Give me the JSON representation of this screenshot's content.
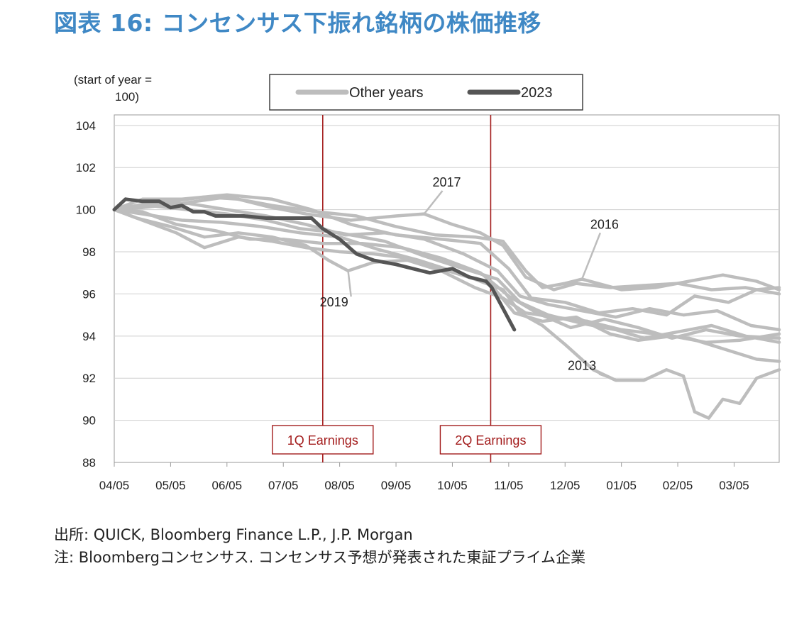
{
  "title": "図表 16: コンセンサス下振れ銘柄の株価推移",
  "source": "出所: QUICK, Bloomberg Finance L.P., J.P. Morgan",
  "footnote": "注: Bloombergコンセンサス. コンセンサス予想が発表された東証プライム企業",
  "colors": {
    "other": "#bdbdbd",
    "highlight": "#555555",
    "event": "#a31c1c",
    "title": "#3f88c5"
  },
  "chart_data": {
    "type": "line",
    "ylabel": "(start of year = 100)",
    "ylabel_lines": [
      "(start of year =",
      "100)"
    ],
    "ylim": [
      88,
      104.5
    ],
    "yticks": [
      88,
      90,
      92,
      94,
      96,
      98,
      100,
      102,
      104
    ],
    "x_domain": [
      0,
      11.8
    ],
    "xticks": [
      "04/05",
      "05/05",
      "06/05",
      "07/05",
      "08/05",
      "09/05",
      "10/05",
      "11/05",
      "12/05",
      "01/05",
      "02/05",
      "03/05"
    ],
    "grid": "horizontal",
    "legend": {
      "placement": "top-center",
      "entries": [
        {
          "name": "Other years",
          "color": "#bdbdbd"
        },
        {
          "name": "2023",
          "color": "#555555"
        }
      ]
    },
    "events": [
      {
        "label": "1Q Earnings",
        "x": 3.7
      },
      {
        "label": "2Q Earnings",
        "x": 6.68
      }
    ],
    "annotations": [
      {
        "text": "2017",
        "x": 5.9,
        "y": 101.1,
        "point": [
          5.5,
          99.8
        ]
      },
      {
        "text": "2016",
        "x": 8.7,
        "y": 99.1,
        "point": [
          8.3,
          96.7
        ]
      },
      {
        "text": "2019",
        "x": 3.9,
        "y": 95.4,
        "point": [
          4.15,
          97.1
        ]
      },
      {
        "text": "2013",
        "x": 8.3,
        "y": 92.4,
        "point": [
          8.9,
          91.9
        ]
      }
    ],
    "series": [
      {
        "name": "2023",
        "highlight": true,
        "points": [
          [
            0,
            100
          ],
          [
            0.2,
            100.5
          ],
          [
            0.5,
            100.4
          ],
          [
            0.8,
            100.4
          ],
          [
            1.0,
            100.1
          ],
          [
            1.2,
            100.2
          ],
          [
            1.4,
            99.9
          ],
          [
            1.6,
            99.9
          ],
          [
            1.8,
            99.7
          ],
          [
            2.0,
            99.7
          ],
          [
            2.3,
            99.7
          ],
          [
            2.7,
            99.6
          ],
          [
            3.2,
            99.6
          ],
          [
            3.5,
            99.6
          ],
          [
            3.7,
            99.1
          ],
          [
            4.0,
            98.6
          ],
          [
            4.3,
            97.9
          ],
          [
            4.6,
            97.6
          ],
          [
            5.0,
            97.4
          ],
          [
            5.3,
            97.2
          ],
          [
            5.6,
            97.0
          ],
          [
            6.0,
            97.2
          ],
          [
            6.3,
            96.8
          ],
          [
            6.6,
            96.6
          ],
          [
            6.7,
            96.3
          ],
          [
            6.9,
            95.3
          ],
          [
            7.1,
            94.3
          ]
        ]
      },
      {
        "name": "2017",
        "points": [
          [
            0,
            100
          ],
          [
            0.5,
            100.2
          ],
          [
            1.0,
            100.4
          ],
          [
            1.6,
            100.6
          ],
          [
            2.2,
            100.5
          ],
          [
            2.8,
            100.1
          ],
          [
            3.4,
            99.8
          ],
          [
            4.2,
            99.5
          ],
          [
            5.0,
            99.7
          ],
          [
            5.5,
            99.8
          ],
          [
            6.0,
            99.3
          ],
          [
            6.5,
            98.9
          ],
          [
            6.9,
            98.3
          ],
          [
            7.3,
            96.8
          ],
          [
            7.8,
            96.2
          ],
          [
            8.2,
            96.5
          ],
          [
            8.8,
            96.3
          ],
          [
            9.4,
            96.4
          ],
          [
            10.0,
            96.5
          ],
          [
            10.6,
            96.2
          ],
          [
            11.2,
            96.3
          ],
          [
            11.8,
            96.0
          ]
        ]
      },
      {
        "name": "2016",
        "points": [
          [
            0,
            100
          ],
          [
            0.5,
            100.1
          ],
          [
            1.2,
            100.3
          ],
          [
            2.0,
            100.6
          ],
          [
            2.8,
            100.2
          ],
          [
            3.6,
            99.9
          ],
          [
            4.3,
            99.7
          ],
          [
            5.0,
            99.2
          ],
          [
            5.7,
            98.8
          ],
          [
            6.4,
            98.7
          ],
          [
            6.9,
            98.5
          ],
          [
            7.3,
            97.1
          ],
          [
            7.6,
            96.3
          ],
          [
            8.0,
            96.5
          ],
          [
            8.3,
            96.7
          ],
          [
            9.0,
            96.2
          ],
          [
            9.6,
            96.3
          ],
          [
            10.2,
            96.6
          ],
          [
            10.8,
            96.9
          ],
          [
            11.4,
            96.6
          ],
          [
            11.8,
            96.2
          ]
        ]
      },
      {
        "name": "2019",
        "points": [
          [
            0,
            100
          ],
          [
            0.4,
            99.6
          ],
          [
            1.0,
            99.2
          ],
          [
            1.6,
            98.7
          ],
          [
            2.2,
            98.9
          ],
          [
            2.8,
            98.7
          ],
          [
            3.4,
            98.3
          ],
          [
            3.8,
            97.6
          ],
          [
            4.15,
            97.1
          ],
          [
            4.6,
            97.5
          ],
          [
            5.2,
            97.6
          ],
          [
            5.8,
            97.1
          ],
          [
            6.4,
            96.3
          ],
          [
            6.9,
            95.8
          ],
          [
            7.3,
            95.1
          ],
          [
            7.8,
            94.9
          ],
          [
            8.4,
            94.7
          ],
          [
            9.0,
            94.3
          ],
          [
            9.6,
            94.1
          ],
          [
            10.2,
            93.9
          ],
          [
            10.8,
            93.4
          ],
          [
            11.4,
            92.9
          ],
          [
            11.8,
            92.8
          ]
        ]
      },
      {
        "name": "2013",
        "points": [
          [
            0,
            100
          ],
          [
            0.5,
            99.5
          ],
          [
            1.1,
            98.9
          ],
          [
            1.6,
            98.2
          ],
          [
            2.2,
            98.7
          ],
          [
            2.8,
            98.5
          ],
          [
            3.4,
            98.2
          ],
          [
            4.0,
            98.0
          ],
          [
            4.6,
            97.9
          ],
          [
            5.2,
            97.7
          ],
          [
            5.8,
            97.2
          ],
          [
            6.4,
            96.7
          ],
          [
            6.9,
            96.2
          ],
          [
            7.2,
            95.1
          ],
          [
            7.6,
            94.5
          ],
          [
            8.0,
            93.6
          ],
          [
            8.5,
            92.4
          ],
          [
            8.9,
            91.9
          ],
          [
            9.4,
            91.9
          ],
          [
            9.8,
            92.4
          ],
          [
            10.1,
            92.1
          ],
          [
            10.3,
            90.4
          ],
          [
            10.55,
            90.1
          ],
          [
            10.8,
            91.0
          ],
          [
            11.1,
            90.8
          ],
          [
            11.4,
            92.0
          ],
          [
            11.8,
            92.4
          ]
        ]
      },
      {
        "name": "Other years",
        "points": [
          [
            0,
            100
          ],
          [
            0.5,
            100.5
          ],
          [
            1.2,
            100.5
          ],
          [
            2.0,
            100.7
          ],
          [
            2.8,
            100.5
          ],
          [
            3.5,
            100.0
          ],
          [
            4.2,
            99.3
          ],
          [
            5.0,
            98.8
          ],
          [
            5.8,
            98.6
          ],
          [
            6.5,
            98.4
          ],
          [
            7.0,
            97.2
          ],
          [
            7.4,
            95.8
          ],
          [
            8.0,
            95.6
          ],
          [
            8.6,
            95.1
          ],
          [
            9.2,
            95.3
          ],
          [
            9.8,
            95.0
          ],
          [
            10.3,
            95.9
          ],
          [
            10.9,
            95.6
          ],
          [
            11.4,
            96.2
          ],
          [
            11.8,
            96.3
          ]
        ]
      },
      {
        "name": "Other years",
        "points": [
          [
            0,
            100
          ],
          [
            0.6,
            100.2
          ],
          [
            1.3,
            100.0
          ],
          [
            2.0,
            99.8
          ],
          [
            2.7,
            99.5
          ],
          [
            3.3,
            99.1
          ],
          [
            4.0,
            98.9
          ],
          [
            4.8,
            98.5
          ],
          [
            5.5,
            97.8
          ],
          [
            6.2,
            97.2
          ],
          [
            6.8,
            96.7
          ],
          [
            7.2,
            95.6
          ],
          [
            7.7,
            95.0
          ],
          [
            8.3,
            94.6
          ],
          [
            8.9,
            94.3
          ],
          [
            9.4,
            93.9
          ],
          [
            10.0,
            94.2
          ],
          [
            10.6,
            94.5
          ],
          [
            11.2,
            94.0
          ],
          [
            11.8,
            93.7
          ]
        ]
      },
      {
        "name": "Other years",
        "points": [
          [
            0,
            100
          ],
          [
            0.5,
            99.8
          ],
          [
            1.2,
            99.5
          ],
          [
            1.9,
            99.4
          ],
          [
            2.6,
            99.2
          ],
          [
            3.3,
            98.9
          ],
          [
            4.0,
            98.7
          ],
          [
            4.7,
            98.1
          ],
          [
            5.4,
            97.6
          ],
          [
            6.1,
            97.0
          ],
          [
            6.7,
            96.4
          ],
          [
            7.1,
            95.1
          ],
          [
            7.6,
            94.7
          ],
          [
            8.2,
            94.9
          ],
          [
            8.8,
            94.1
          ],
          [
            9.3,
            93.8
          ],
          [
            9.9,
            94.0
          ],
          [
            10.5,
            93.7
          ],
          [
            11.1,
            93.8
          ],
          [
            11.8,
            94.1
          ]
        ]
      },
      {
        "name": "Other years",
        "points": [
          [
            0,
            100
          ],
          [
            0.5,
            99.9
          ],
          [
            1.1,
            99.3
          ],
          [
            1.8,
            99.0
          ],
          [
            2.4,
            98.6
          ],
          [
            3.0,
            98.6
          ],
          [
            3.7,
            98.4
          ],
          [
            4.4,
            98.4
          ],
          [
            5.1,
            98.2
          ],
          [
            5.8,
            97.7
          ],
          [
            6.5,
            97.0
          ],
          [
            7.0,
            95.9
          ],
          [
            7.5,
            95.1
          ],
          [
            8.1,
            94.4
          ],
          [
            8.7,
            94.8
          ],
          [
            9.3,
            94.4
          ],
          [
            9.9,
            93.9
          ],
          [
            10.5,
            94.3
          ],
          [
            11.1,
            94.0
          ],
          [
            11.8,
            93.9
          ]
        ]
      },
      {
        "name": "Other years",
        "points": [
          [
            0,
            100
          ],
          [
            0.6,
            100.3
          ],
          [
            1.3,
            100.3
          ],
          [
            2.0,
            100.0
          ],
          [
            2.7,
            99.7
          ],
          [
            3.4,
            99.3
          ],
          [
            4.1,
            98.8
          ],
          [
            4.8,
            98.9
          ],
          [
            5.5,
            98.6
          ],
          [
            6.2,
            97.9
          ],
          [
            6.8,
            97.1
          ],
          [
            7.2,
            95.9
          ],
          [
            7.7,
            95.5
          ],
          [
            8.3,
            95.2
          ],
          [
            8.9,
            94.9
          ],
          [
            9.5,
            95.3
          ],
          [
            10.1,
            95.0
          ],
          [
            10.7,
            95.2
          ],
          [
            11.3,
            94.5
          ],
          [
            11.8,
            94.3
          ]
        ]
      }
    ]
  }
}
